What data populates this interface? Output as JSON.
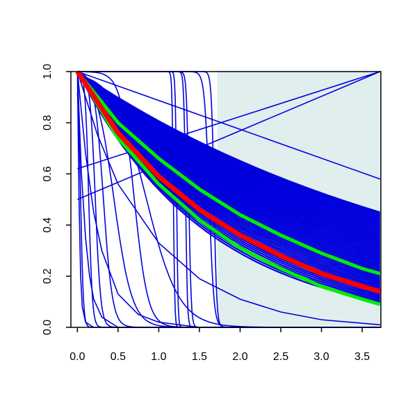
{
  "chart_data": {
    "type": "line",
    "title": "",
    "xlabel": "",
    "ylabel": "",
    "xlim": [
      -0.08,
      3.73
    ],
    "ylim": [
      0.0,
      1.0
    ],
    "x_ticks": [
      0.0,
      0.5,
      1.0,
      1.5,
      2.0,
      2.5,
      3.0,
      3.5
    ],
    "x_tick_labels": [
      "0.0",
      "0.5",
      "1.0",
      "1.5",
      "2.0",
      "2.5",
      "3.0",
      "3.5"
    ],
    "y_ticks": [
      0.0,
      0.2,
      0.4,
      0.6,
      0.8,
      1.0
    ],
    "y_tick_labels": [
      "0.0",
      "0.2",
      "0.4",
      "0.6",
      "0.8",
      "1.0"
    ],
    "shaded_region": {
      "x_from": 1.72,
      "x_to": 3.73,
      "color": "#e0eeee"
    },
    "colors": {
      "curves": "#0000dd",
      "central": "#ff0000",
      "bounds": "#00ee00"
    },
    "grid": false,
    "legend": "none",
    "central_curve": {
      "name": "",
      "x": [
        0.0,
        0.5,
        1.0,
        1.5,
        2.0,
        2.5,
        3.0,
        3.5,
        3.72
      ],
      "y": [
        1.0,
        0.76,
        0.59,
        0.46,
        0.36,
        0.28,
        0.21,
        0.16,
        0.14
      ]
    },
    "bound_curves": [
      {
        "name": "",
        "x": [
          0.0,
          0.5,
          1.0,
          1.5,
          2.0,
          2.5,
          3.0,
          3.5,
          3.72
        ],
        "y": [
          1.0,
          0.8,
          0.66,
          0.54,
          0.44,
          0.36,
          0.29,
          0.23,
          0.21
        ]
      },
      {
        "name": "",
        "x": [
          0.0,
          0.5,
          1.0,
          1.5,
          2.0,
          2.5,
          3.0,
          3.5,
          3.72
        ],
        "y": [
          1.0,
          0.74,
          0.56,
          0.42,
          0.31,
          0.23,
          0.16,
          0.11,
          0.09
        ]
      }
    ],
    "decay_band": {
      "count": 60,
      "x_end": 3.72,
      "y_end_min": 0.1,
      "y_end_max": 0.45
    },
    "other_curves": [
      {
        "x": [
          0.0,
          3.72
        ],
        "y": [
          0.62,
          1.0
        ]
      },
      {
        "x": [
          0.0,
          3.72
        ],
        "y": [
          0.5,
          1.0
        ]
      },
      {
        "x": [
          0.0,
          3.72
        ],
        "y": [
          1.0,
          0.58
        ]
      },
      {
        "x": [
          0.0,
          0.25,
          0.5,
          1.0,
          1.5,
          2.0,
          2.5,
          3.0,
          3.72
        ],
        "y": [
          1.0,
          0.75,
          0.56,
          0.33,
          0.19,
          0.11,
          0.06,
          0.03,
          0.01
        ]
      },
      {
        "x": [
          0.0,
          0.1,
          0.2,
          0.3,
          0.5,
          0.75,
          1.0,
          1.5
        ],
        "y": [
          1.0,
          0.68,
          0.45,
          0.3,
          0.13,
          0.05,
          0.02,
          0.0
        ]
      },
      {
        "x": [
          0.0,
          0.05,
          0.1,
          0.15,
          0.2,
          0.3,
          0.5
        ],
        "y": [
          1.0,
          0.6,
          0.35,
          0.2,
          0.11,
          0.04,
          0.0
        ]
      },
      {
        "x": [
          0.0,
          0.02,
          0.04,
          0.06,
          0.1,
          0.2
        ],
        "y": [
          1.0,
          0.5,
          0.2,
          0.08,
          0.02,
          0.0
        ]
      }
    ],
    "sigmoid_curves": [
      {
        "midpoint": 0.04,
        "steepness": 60
      },
      {
        "midpoint": 0.14,
        "steepness": 45
      },
      {
        "midpoint": 0.22,
        "steepness": 30
      },
      {
        "midpoint": 0.32,
        "steepness": 18
      },
      {
        "midpoint": 0.45,
        "steepness": 9
      },
      {
        "midpoint": 0.7,
        "steepness": 12
      },
      {
        "midpoint": 0.85,
        "steepness": 5
      },
      {
        "midpoint": 1.18,
        "steepness": 120
      },
      {
        "midpoint": 1.22,
        "steepness": 120
      },
      {
        "midpoint": 1.33,
        "steepness": 90
      },
      {
        "midpoint": 1.37,
        "steepness": 70
      },
      {
        "midpoint": 1.62,
        "steepness": 35
      },
      {
        "midpoint": 1.68,
        "steepness": 60
      }
    ]
  }
}
